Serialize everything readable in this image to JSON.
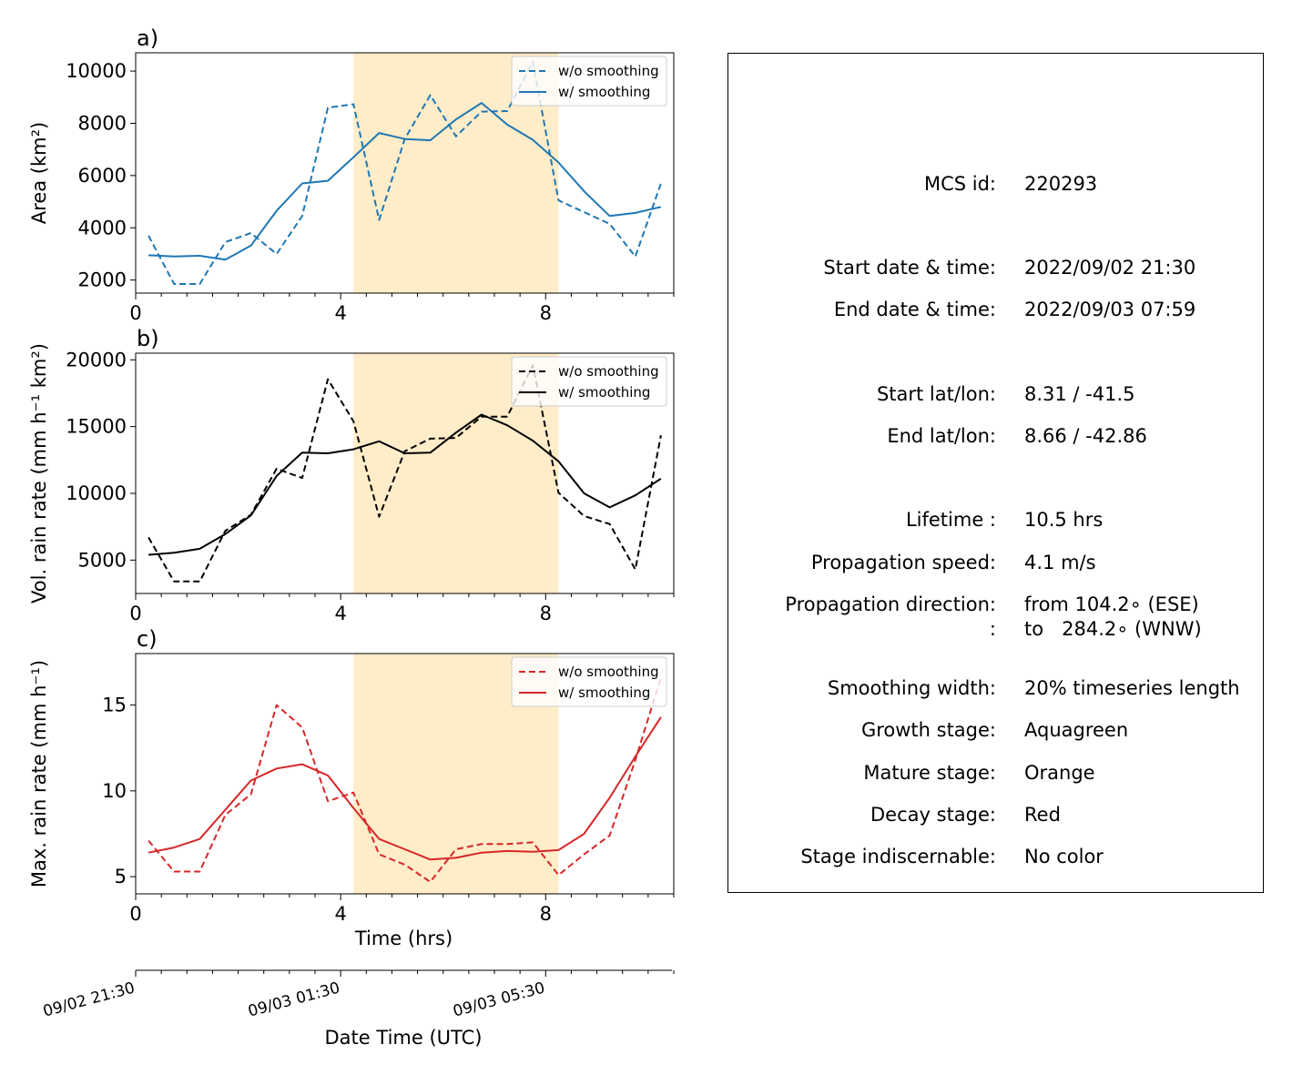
{
  "chart_data": [
    {
      "type": "line",
      "panel_label": "a)",
      "ylabel": "Area  (km²)",
      "ylim": [
        1500,
        10700
      ],
      "yticks": [
        2000,
        4000,
        6000,
        8000,
        10000
      ],
      "xlim": [
        0,
        10.5
      ],
      "xticks": [
        0,
        4,
        8
      ],
      "shaded_span": [
        4.25,
        8.25
      ],
      "shade_color": "#ffecc8",
      "color": "#1f77b4",
      "legend": {
        "position": "upper right",
        "entries": [
          "w/o smoothing",
          "w/ smoothing"
        ]
      },
      "series": [
        {
          "name": "w/o smoothing",
          "style": "dashed",
          "x": [
            0.25,
            0.75,
            1.25,
            1.75,
            2.25,
            2.75,
            3.25,
            3.75,
            4.25,
            4.75,
            5.25,
            5.75,
            6.25,
            6.75,
            7.25,
            7.75,
            8.25,
            8.75,
            9.25,
            9.75,
            10.25
          ],
          "y": [
            3700,
            1850,
            1850,
            3450,
            3800,
            3000,
            4450,
            8600,
            8730,
            4300,
            7400,
            9080,
            7500,
            8450,
            8470,
            10350,
            5050,
            4600,
            4150,
            2900,
            5700
          ]
        },
        {
          "name": "w/ smoothing",
          "style": "solid",
          "x": [
            0.25,
            0.75,
            1.25,
            1.75,
            2.25,
            2.75,
            3.25,
            3.75,
            4.25,
            4.75,
            5.25,
            5.75,
            6.25,
            6.75,
            7.25,
            7.75,
            8.25,
            8.75,
            9.25,
            9.75,
            10.25
          ],
          "y": [
            2950,
            2900,
            2930,
            2780,
            3320,
            4650,
            5700,
            5800,
            6700,
            7630,
            7400,
            7350,
            8150,
            8780,
            7950,
            7370,
            6500,
            5400,
            4450,
            4570,
            4800
          ]
        }
      ]
    },
    {
      "type": "line",
      "panel_label": "b)",
      "ylabel": "Vol. rain rate (mm h⁻¹ km²)",
      "ylim": [
        2500,
        20500
      ],
      "yticks": [
        5000,
        10000,
        15000,
        20000
      ],
      "xlim": [
        0,
        10.5
      ],
      "xticks": [
        0,
        4,
        8
      ],
      "shaded_span": [
        4.25,
        8.25
      ],
      "shade_color": "#ffecc8",
      "color": "#000000",
      "legend": {
        "position": "upper right",
        "entries": [
          "w/o smoothing",
          "w/ smoothing"
        ]
      },
      "series": [
        {
          "name": "w/o smoothing",
          "style": "dashed",
          "x": [
            0.25,
            0.75,
            1.25,
            1.75,
            2.25,
            2.75,
            3.25,
            3.75,
            4.25,
            4.75,
            5.25,
            5.75,
            6.25,
            6.75,
            7.25,
            7.75,
            8.25,
            8.75,
            9.25,
            9.75,
            10.25
          ],
          "y": [
            6700,
            3400,
            3400,
            7200,
            8400,
            11850,
            11150,
            18550,
            15400,
            8250,
            13150,
            14100,
            14150,
            15750,
            15750,
            19600,
            10050,
            8300,
            7700,
            4300,
            14350
          ]
        },
        {
          "name": "w/ smoothing",
          "style": "solid",
          "x": [
            0.25,
            0.75,
            1.25,
            1.75,
            2.25,
            2.75,
            3.25,
            3.75,
            4.25,
            4.75,
            5.25,
            5.75,
            6.25,
            6.75,
            7.25,
            7.75,
            8.25,
            8.75,
            9.25,
            9.75,
            10.25
          ],
          "y": [
            5400,
            5550,
            5850,
            6950,
            8350,
            11300,
            13050,
            13000,
            13300,
            13900,
            13000,
            13050,
            14550,
            15900,
            15100,
            13950,
            12400,
            10000,
            8950,
            9850,
            11100
          ]
        }
      ]
    },
    {
      "type": "line",
      "panel_label": "c)",
      "ylabel": "Max. rain rate  (mm h⁻¹)",
      "xlabel": "Time (hrs)",
      "ylim": [
        4,
        18
      ],
      "yticks": [
        5,
        10,
        15
      ],
      "xlim": [
        0,
        10.5
      ],
      "xticks": [
        0,
        4,
        8
      ],
      "shaded_span": [
        4.25,
        8.25
      ],
      "shade_color": "#ffecc8",
      "color": "#d62728",
      "legend": {
        "position": "upper right",
        "entries": [
          "w/o smoothing",
          "w/ smoothing"
        ]
      },
      "series": [
        {
          "name": "w/o smoothing",
          "style": "dashed",
          "x": [
            0.25,
            0.75,
            1.25,
            1.75,
            2.25,
            2.75,
            3.25,
            3.75,
            4.25,
            4.75,
            5.25,
            5.75,
            6.25,
            6.75,
            7.25,
            7.75,
            8.25,
            8.75,
            9.25,
            9.75,
            10.25
          ],
          "y": [
            7.1,
            5.3,
            5.3,
            8.6,
            9.8,
            15.0,
            13.7,
            9.4,
            9.9,
            6.3,
            5.7,
            4.7,
            6.6,
            6.9,
            6.9,
            7.0,
            5.1,
            6.3,
            7.4,
            11.8,
            16.6
          ]
        },
        {
          "name": "w/ smoothing",
          "style": "solid",
          "x": [
            0.25,
            0.75,
            1.25,
            1.75,
            2.25,
            2.75,
            3.25,
            3.75,
            4.25,
            4.75,
            5.25,
            5.75,
            6.25,
            6.75,
            7.25,
            7.75,
            8.25,
            8.75,
            9.25,
            9.75,
            10.25
          ],
          "y": [
            6.4,
            6.7,
            7.2,
            8.9,
            10.6,
            11.3,
            11.55,
            10.9,
            9.0,
            7.2,
            6.6,
            6.0,
            6.1,
            6.4,
            6.5,
            6.45,
            6.55,
            7.5,
            9.6,
            12.0,
            14.3
          ]
        }
      ]
    }
  ],
  "datetime_axis": {
    "xlabel": "Date Time (UTC)",
    "ticks": [
      {
        "t": 0,
        "label": "09/02 21:30"
      },
      {
        "t": 4,
        "label": "09/03 01:30"
      },
      {
        "t": 8,
        "label": "09/03 05:30"
      }
    ]
  },
  "info": {
    "rows": [
      {
        "label": "MCS id:",
        "value": "220293",
        "value2": ""
      },
      {
        "label": "Start date & time:",
        "value": "2022/09/02 21:30",
        "value2": ""
      },
      {
        "label": "End date & time:",
        "value": "2022/09/03 07:59",
        "value2": ""
      },
      {
        "label": "Start lat/lon:",
        "value": "8.31 / -41.5",
        "value2": ""
      },
      {
        "label": "End lat/lon:",
        "value": "8.66 / -42.86",
        "value2": ""
      },
      {
        "label": "Lifetime :",
        "value": "10.5 hrs",
        "value2": ""
      },
      {
        "label": "Propagation speed:",
        "value": "4.1 m/s",
        "value2": ""
      },
      {
        "label": "Propagation direction:",
        "value": "from 104.2∘ (ESE)",
        "value2": ""
      },
      {
        "label": ":",
        "value": "to   284.2∘ (WNW)",
        "value2": ""
      },
      {
        "label": "Smoothing width:",
        "value": "20% timeseries length",
        "value2": ""
      },
      {
        "label": "Growth stage:",
        "value": "Aquagreen",
        "value2": ""
      },
      {
        "label": "Mature stage:",
        "value": "Orange",
        "value2": ""
      },
      {
        "label": "Decay stage:",
        "value": "Red",
        "value2": ""
      },
      {
        "label": "Stage indiscernable:",
        "value": "No color",
        "value2": ""
      }
    ]
  }
}
